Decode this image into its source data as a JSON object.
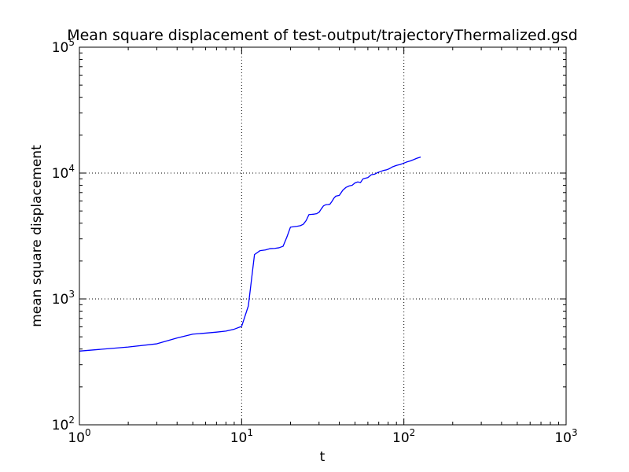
{
  "chart_data": {
    "type": "line",
    "title": "Mean square displacement of test-output/trajectoryThermalized.gsd",
    "xlabel": "t",
    "ylabel": "mean square displacement",
    "xscale": "log",
    "yscale": "log",
    "xlim": [
      1,
      1000
    ],
    "ylim": [
      100,
      100000
    ],
    "grid": true,
    "xtick_exponents": [
      "0",
      "1",
      "2",
      "3"
    ],
    "ytick_exponents": [
      "2",
      "3",
      "4",
      "5"
    ],
    "tick_base": "10",
    "line_color": "#0000ff",
    "series": [
      {
        "x": [
          1,
          2,
          3,
          4,
          5,
          6,
          7,
          8,
          9,
          10,
          11,
          12,
          13,
          14,
          15,
          16,
          17,
          18,
          19,
          20,
          21,
          22,
          23,
          24,
          25,
          26,
          27,
          28,
          29,
          30,
          31,
          32,
          33,
          34,
          35,
          36,
          37,
          38,
          39,
          40,
          42,
          44,
          46,
          48,
          50,
          52,
          54,
          56,
          58,
          60,
          63,
          66,
          69,
          72,
          75,
          78,
          81,
          85,
          90,
          95,
          100,
          105,
          110,
          115,
          120,
          127
        ],
        "y": [
          385,
          415,
          440,
          490,
          525,
          535,
          545,
          555,
          575,
          605,
          880,
          2250,
          2420,
          2450,
          2510,
          2520,
          2550,
          2620,
          3100,
          3720,
          3750,
          3780,
          3820,
          3920,
          4200,
          4680,
          4700,
          4720,
          4760,
          4880,
          5200,
          5500,
          5600,
          5620,
          5650,
          5950,
          6300,
          6550,
          6600,
          6650,
          7300,
          7700,
          7900,
          8000,
          8350,
          8500,
          8400,
          9000,
          9100,
          9200,
          9700,
          9800,
          10100,
          10300,
          10500,
          10600,
          10800,
          11200,
          11500,
          11700,
          12000,
          12300,
          12500,
          12800,
          13100,
          13400
        ]
      }
    ]
  }
}
